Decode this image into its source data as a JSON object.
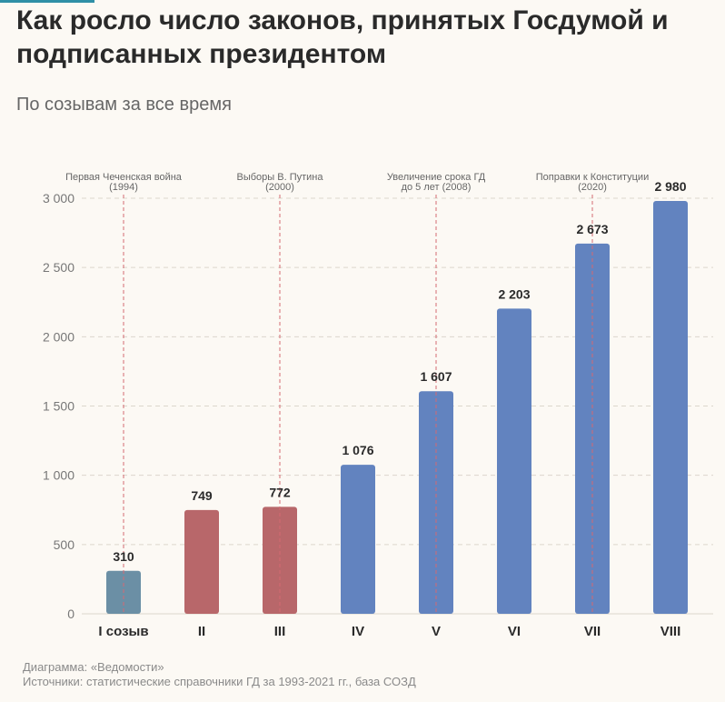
{
  "page": {
    "title": "Как росло число законов, принятых Госдумой и подписанных президентом",
    "subtitle": "По созывам за все время",
    "credit": "Диаграмма: «Ведомости»",
    "source": "Источники: статистические справочники ГД за 1993-2021 гг., база СОЗД"
  },
  "chart_data": {
    "type": "bar",
    "categories": [
      "I созыв",
      "II",
      "III",
      "IV",
      "V",
      "VI",
      "VII",
      "VIII"
    ],
    "values": [
      310,
      749,
      772,
      1076,
      1607,
      2203,
      2673,
      2980
    ],
    "value_labels": [
      "310",
      "749",
      "772",
      "1 076",
      "1 607",
      "2 203",
      "2 673",
      "2 980"
    ],
    "bar_colors": [
      "#6b8fa5",
      "#b8676a",
      "#b8676a",
      "#6283bf",
      "#6283bf",
      "#6283bf",
      "#6283bf",
      "#6283bf"
    ],
    "ylim": [
      0,
      3000
    ],
    "yticks": [
      0,
      500,
      1000,
      1500,
      2000,
      2500,
      3000
    ],
    "ytick_labels": [
      "0",
      "500",
      "1 000",
      "1 500",
      "2 000",
      "2 500",
      "3 000"
    ],
    "grid": true,
    "annotations": [
      {
        "category_index": 0,
        "lines": [
          "Первая Чеченская война",
          "(1994)"
        ]
      },
      {
        "category_index": 2,
        "lines": [
          "Выборы В. Путина",
          "(2000)"
        ]
      },
      {
        "category_index": 4,
        "lines": [
          "Увеличение срока ГД",
          "до 5 лет (2008)"
        ]
      },
      {
        "category_index": 6,
        "lines": [
          "Поправки к Конституции",
          "(2020)"
        ]
      }
    ],
    "colors": {
      "grid": "#dcd6cc",
      "annotation_line": "#d46a72",
      "text": "#2a2a2a",
      "axis_text": "#777777",
      "annotation_text": "#666666"
    }
  }
}
